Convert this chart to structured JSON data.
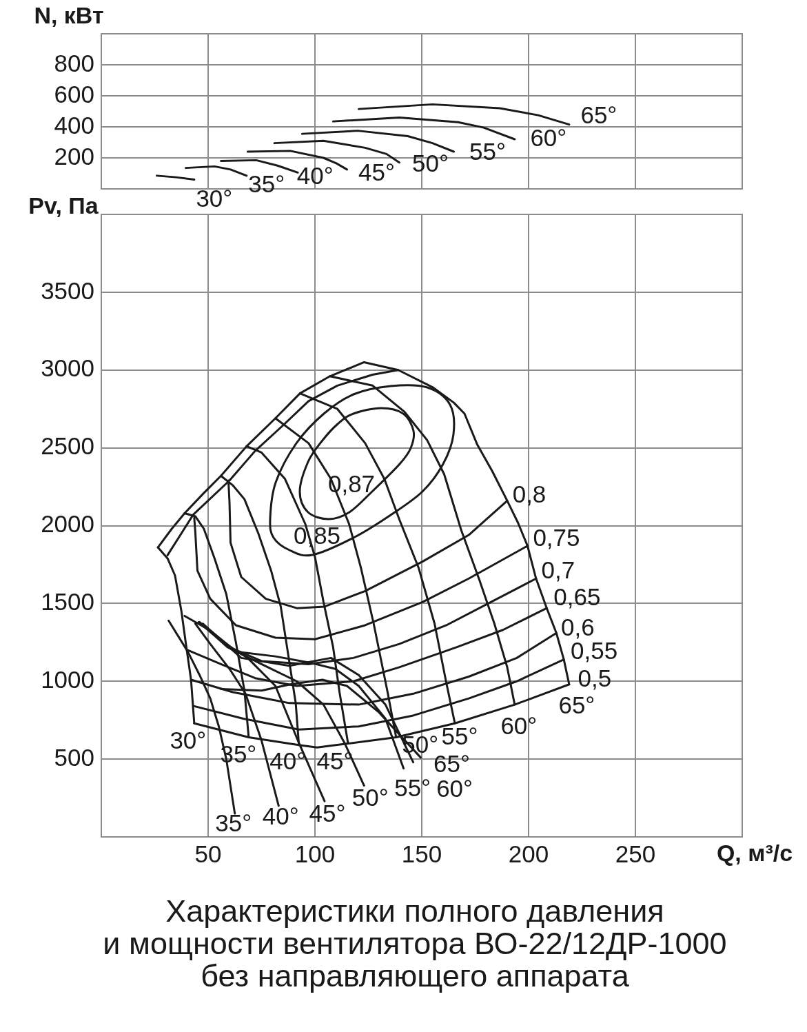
{
  "chart_data": [
    {
      "type": "line",
      "ylabel": "N, кВт",
      "xlim": [
        0,
        300
      ],
      "xticks": [
        50,
        100,
        150,
        200,
        250
      ],
      "ylim": [
        0,
        1000
      ],
      "yticks": [
        200,
        400,
        600,
        800
      ],
      "tick_labels": "y",
      "grid": true,
      "legend": false,
      "marker": "none",
      "series": [
        {
          "name": "30°",
          "color": "#1a1a1a",
          "x": [
            26,
            35,
            43.5
          ],
          "values": [
            85,
            75,
            60
          ]
        },
        {
          "name": "35°",
          "color": "#1a1a1a",
          "x": [
            39.5,
            53,
            60.5,
            68
          ],
          "values": [
            135,
            145,
            125,
            85
          ]
        },
        {
          "name": "40°",
          "color": "#1a1a1a",
          "x": [
            56,
            72.5,
            82.5,
            92
          ],
          "values": [
            180,
            185,
            150,
            105
          ]
        },
        {
          "name": "45°",
          "color": "#1a1a1a",
          "x": [
            68.5,
            88.5,
            104,
            110,
            115
          ],
          "values": [
            240,
            245,
            200,
            165,
            125
          ]
        },
        {
          "name": "50°",
          "color": "#1a1a1a",
          "x": [
            81,
            104,
            123.5,
            133.5,
            139.5
          ],
          "values": [
            295,
            310,
            265,
            225,
            170
          ]
        },
        {
          "name": "55°",
          "color": "#1a1a1a",
          "x": [
            94,
            120,
            143.5,
            155,
            165
          ],
          "values": [
            355,
            375,
            340,
            295,
            240
          ]
        },
        {
          "name": "60°",
          "color": "#1a1a1a",
          "x": [
            108.5,
            139.5,
            167,
            179,
            193.5
          ],
          "values": [
            435,
            460,
            430,
            395,
            320
          ]
        },
        {
          "name": "65°",
          "color": "#1a1a1a",
          "x": [
            120.5,
            155,
            186.5,
            204.5,
            219
          ],
          "values": [
            515,
            545,
            520,
            475,
            415
          ]
        }
      ]
    },
    {
      "type": "line",
      "title": "Характеристики полного давления\nи мощности вентилятора ВО-22/12ДР-1000\nбез направляющего аппарата",
      "xlabel": "Q, м³/с",
      "ylabel": "Pv, Па",
      "xlim": [
        0,
        300
      ],
      "xticks": [
        50,
        100,
        150,
        200,
        250
      ],
      "ylim": [
        0,
        4000
      ],
      "yticks": [
        500,
        1000,
        1500,
        2000,
        2500,
        3000,
        3500
      ],
      "grid": true,
      "legend": false,
      "marker": "none",
      "annotations": [
        "0,87",
        "0,85"
      ],
      "series": [
        {
          "color": "#1a1a1a",
          "x": [
            26.5,
            33,
            39,
            48,
            56,
            68,
            81.5,
            93,
            107,
            123
          ],
          "values": [
            1860,
            1980,
            2080,
            2210,
            2320,
            2510,
            2690,
            2850,
            2960,
            3050
          ]
        },
        {
          "color": "#1a1a1a",
          "x": [
            31,
            43,
            60,
            72,
            85.5,
            97,
            110.5,
            127,
            139
          ],
          "values": [
            1810,
            2070,
            2290,
            2480,
            2650,
            2800,
            2900,
            2970,
            3000
          ]
        },
        {
          "name": "30°",
          "color": "#1a1a1a",
          "x": [
            26.5,
            31,
            34.5,
            37.5,
            39.5,
            42,
            43.5
          ],
          "values": [
            1860,
            1790,
            1680,
            1450,
            1250,
            1010,
            730
          ]
        },
        {
          "name": "35°",
          "color": "#1a1a1a",
          "x": [
            39,
            44,
            48,
            53,
            58.5,
            63,
            67,
            69
          ],
          "values": [
            2080,
            2060,
            1980,
            1790,
            1560,
            1250,
            940,
            640
          ]
        },
        {
          "name": "40°",
          "color": "#1a1a1a",
          "x": [
            56,
            61.5,
            67,
            73.5,
            79.5,
            84,
            87.5,
            91,
            92.5
          ],
          "values": [
            2320,
            2260,
            2170,
            1950,
            1710,
            1480,
            1170,
            860,
            590
          ]
        },
        {
          "name": "45°",
          "color": "#1a1a1a",
          "x": [
            68,
            75,
            86,
            95.5,
            100,
            104,
            108.5,
            111.5,
            115.5
          ],
          "values": [
            2510,
            2470,
            2300,
            2010,
            1800,
            1510,
            1220,
            930,
            600
          ]
        },
        {
          "name": "50°",
          "color": "#1a1a1a",
          "x": [
            81.5,
            97,
            107.5,
            116,
            121.5,
            127.5,
            134,
            138
          ],
          "values": [
            2690,
            2530,
            2300,
            2010,
            1730,
            1370,
            930,
            640
          ]
        },
        {
          "name": "55°",
          "color": "#1a1a1a",
          "x": [
            93,
            110.5,
            123.5,
            132.5,
            139.5,
            148.5,
            156,
            161.5,
            165.5
          ],
          "values": [
            2850,
            2750,
            2530,
            2300,
            2040,
            1730,
            1370,
            990,
            730
          ]
        },
        {
          "name": "60°",
          "color": "#1a1a1a",
          "x": [
            107,
            127,
            142,
            152.5,
            160.5,
            168.5,
            177,
            184,
            190,
            193.5
          ],
          "values": [
            2960,
            2900,
            2730,
            2550,
            2330,
            1970,
            1650,
            1370,
            1090,
            850
          ]
        },
        {
          "name": "65°",
          "color": "#1a1a1a",
          "x": [
            123,
            139,
            155,
            165,
            170,
            176,
            183,
            190,
            195,
            199.5,
            203.5,
            208.5,
            213,
            216.5,
            219
          ],
          "values": [
            3050,
            3000,
            2890,
            2790,
            2720,
            2520,
            2350,
            2160,
            2020,
            1870,
            1660,
            1470,
            1310,
            1140,
            980
          ]
        },
        {
          "name": "0,5",
          "color": "#1a1a1a",
          "x": [
            43.5,
            69,
            92.5,
            101,
            115.5,
            138,
            165.5,
            193.5,
            219
          ],
          "values": [
            730,
            640,
            590,
            575,
            600,
            640,
            730,
            850,
            980
          ]
        },
        {
          "name": "0,55",
          "color": "#1a1a1a",
          "x": [
            43.5,
            66.5,
            92.5,
            120.5,
            146,
            172,
            194.5,
            216.5
          ],
          "values": [
            840,
            760,
            690,
            710,
            780,
            890,
            1000,
            1140
          ]
        },
        {
          "name": "0,6",
          "color": "#1a1a1a",
          "x": [
            42,
            61.5,
            88,
            120.5,
            146,
            172,
            194.5,
            213
          ],
          "values": [
            1010,
            930,
            860,
            850,
            920,
            1030,
            1150,
            1310
          ]
        },
        {
          "name": "0,65",
          "color": "#1a1a1a",
          "x": [
            40.5,
            56,
            72,
            91.5,
            118,
            139.5,
            166.5,
            188,
            208.5
          ],
          "values": [
            1200,
            1110,
            1020,
            970,
            1000,
            1090,
            1220,
            1330,
            1470
          ]
        },
        {
          "name": "0,7",
          "color": "#1a1a1a",
          "x": [
            39,
            50.5,
            61.5,
            75,
            97,
            118,
            139.5,
            161.5,
            182.5,
            203.5
          ],
          "values": [
            1420,
            1330,
            1210,
            1130,
            1110,
            1150,
            1240,
            1360,
            1510,
            1660
          ]
        },
        {
          "name": "0,75",
          "color": "#1a1a1a",
          "x": [
            43.5,
            44,
            45,
            51,
            63,
            81.5,
            100,
            123.5,
            150.5,
            172,
            199.5
          ],
          "values": [
            2050,
            1960,
            1710,
            1530,
            1360,
            1280,
            1270,
            1360,
            1510,
            1660,
            1870
          ]
        },
        {
          "name": "0,8",
          "color": "#1a1a1a",
          "x": [
            59.5,
            60,
            60.5,
            65.5,
            77,
            91.5,
            104.5,
            123.5,
            150.5,
            172,
            190
          ],
          "values": [
            2290,
            2150,
            1890,
            1670,
            1530,
            1470,
            1480,
            1580,
            1770,
            1940,
            2160
          ]
        },
        {
          "name": "35°",
          "color": "#1a1a1a",
          "x": [
            31.5,
            40.5,
            46,
            51,
            55,
            58.5,
            62.5
          ],
          "values": [
            1390,
            1190,
            1040,
            890,
            710,
            500,
            150
          ]
        },
        {
          "name": "40°",
          "color": "#1a1a1a",
          "x": [
            44,
            51,
            60.5,
            67.5,
            75,
            83
          ],
          "values": [
            1370,
            1240,
            1070,
            920,
            620,
            200
          ]
        },
        {
          "name": "45°",
          "color": "#1a1a1a",
          "x": [
            45.5,
            56,
            68.5,
            81.5,
            92,
            104.5
          ],
          "values": [
            1380,
            1260,
            1150,
            970,
            620,
            230
          ]
        },
        {
          "name": "50°",
          "color": "#1a1a1a",
          "x": [
            46,
            59,
            75,
            91.5,
            104,
            114,
            123
          ],
          "values": [
            1380,
            1220,
            1110,
            1000,
            850,
            600,
            330
          ]
        },
        {
          "name": "55°",
          "color": "#1a1a1a",
          "x": [
            47,
            63,
            81.5,
            97.5,
            109.5,
            120.5,
            133,
            141.5
          ],
          "values": [
            1370,
            1190,
            1160,
            1120,
            1080,
            970,
            760,
            440
          ]
        },
        {
          "name": "60°",
          "color": "#1a1a1a",
          "x": [
            47.5,
            65.5,
            88,
            107.5,
            120.5,
            133,
            146
          ],
          "values": [
            1370,
            1150,
            1100,
            1150,
            1040,
            850,
            480
          ]
        },
        {
          "name": "65°",
          "color": "#1a1a1a",
          "x": [
            56,
            75,
            88.5,
            103.5,
            115,
            130,
            149.5
          ],
          "values": [
            950,
            940,
            980,
            1010,
            970,
            800,
            510
          ]
        }
      ]
    }
  ]
}
